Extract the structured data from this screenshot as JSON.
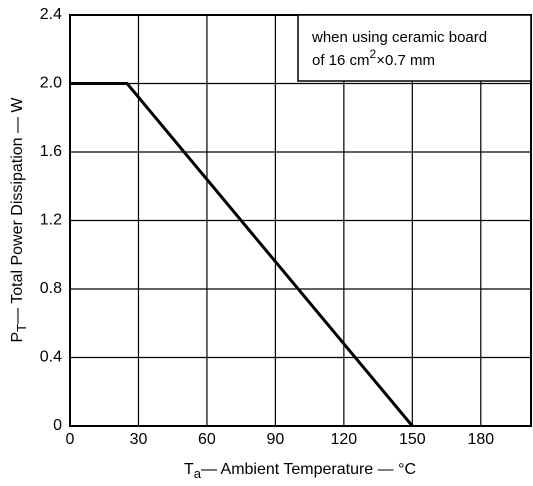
{
  "chart_data": {
    "type": "line",
    "x": [
      0,
      25,
      150
    ],
    "series": [
      {
        "color": "#000000",
        "values": [
          2.0,
          2.0,
          0
        ]
      }
    ],
    "xlim": [
      0,
      202
    ],
    "xticks": [
      0,
      30,
      60,
      90,
      120,
      150,
      180
    ],
    "ylim": [
      0,
      2.4
    ],
    "yticks": [
      {
        "value": 0,
        "label": "0"
      },
      0.4,
      0.8,
      1.2,
      1.6,
      {
        "value": 2.0,
        "label": "2.0"
      },
      2.4
    ],
    "grid": true,
    "xlabel": [
      "T",
      "a",
      "— Ambient Temperature — °C"
    ],
    "ylabel": [
      "P",
      "T",
      "— Total Power Dissipation — W"
    ],
    "annotation": {
      "line1": "when using ceramic board",
      "line2": [
        "of 16 cm",
        "2",
        "×0.7 mm"
      ]
    }
  }
}
